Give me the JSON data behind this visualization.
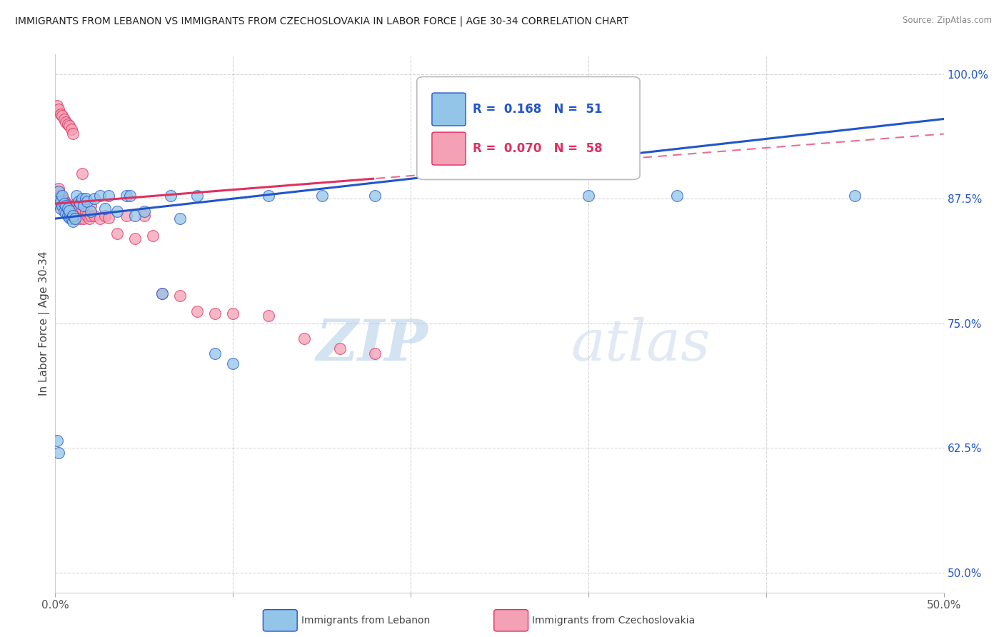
{
  "title": "IMMIGRANTS FROM LEBANON VS IMMIGRANTS FROM CZECHOSLOVAKIA IN LABOR FORCE | AGE 30-34 CORRELATION CHART",
  "source": "Source: ZipAtlas.com",
  "ylabel": "In Labor Force | Age 30-34",
  "xlim": [
    0.0,
    0.5
  ],
  "ylim": [
    0.48,
    1.02
  ],
  "y_ticks_right": [
    0.5,
    0.625,
    0.75,
    0.875,
    1.0
  ],
  "y_tick_labels_right": [
    "50.0%",
    "62.5%",
    "75.0%",
    "87.5%",
    "100.0%"
  ],
  "lebanon_R": 0.168,
  "lebanon_N": 51,
  "czech_R": 0.07,
  "czech_N": 58,
  "lebanon_color": "#92C5E8",
  "czech_color": "#F4A0B5",
  "lebanon_line_color": "#2255CC",
  "czech_line_color": "#E03060",
  "background_color": "#FFFFFF",
  "grid_color": "#CCCCCC",
  "watermark_zip": "ZIP",
  "watermark_atlas": "atlas",
  "lebanon_x": [
    0.001,
    0.001,
    0.002,
    0.002,
    0.003,
    0.003,
    0.004,
    0.004,
    0.005,
    0.005,
    0.006,
    0.006,
    0.007,
    0.007,
    0.008,
    0.008,
    0.009,
    0.01,
    0.01,
    0.011,
    0.012,
    0.013,
    0.014,
    0.015,
    0.016,
    0.017,
    0.018,
    0.02,
    0.022,
    0.025,
    0.028,
    0.03,
    0.035,
    0.04,
    0.042,
    0.045,
    0.05,
    0.06,
    0.065,
    0.07,
    0.08,
    0.09,
    0.1,
    0.12,
    0.15,
    0.18,
    0.3,
    0.35,
    0.45,
    0.001,
    0.002
  ],
  "lebanon_y": [
    0.87,
    0.875,
    0.875,
    0.882,
    0.865,
    0.872,
    0.868,
    0.878,
    0.862,
    0.87,
    0.86,
    0.868,
    0.858,
    0.865,
    0.856,
    0.863,
    0.855,
    0.852,
    0.858,
    0.855,
    0.878,
    0.872,
    0.87,
    0.875,
    0.868,
    0.875,
    0.872,
    0.862,
    0.875,
    0.878,
    0.865,
    0.878,
    0.862,
    0.878,
    0.878,
    0.858,
    0.862,
    0.78,
    0.878,
    0.855,
    0.878,
    0.72,
    0.71,
    0.878,
    0.878,
    0.878,
    0.878,
    0.878,
    0.878,
    0.632,
    0.62
  ],
  "czech_x": [
    0.001,
    0.001,
    0.002,
    0.002,
    0.003,
    0.003,
    0.004,
    0.004,
    0.005,
    0.005,
    0.006,
    0.006,
    0.007,
    0.007,
    0.008,
    0.009,
    0.01,
    0.01,
    0.011,
    0.012,
    0.013,
    0.014,
    0.015,
    0.016,
    0.017,
    0.018,
    0.019,
    0.02,
    0.022,
    0.025,
    0.028,
    0.03,
    0.035,
    0.04,
    0.045,
    0.05,
    0.055,
    0.06,
    0.07,
    0.08,
    0.09,
    0.1,
    0.12,
    0.14,
    0.16,
    0.18,
    0.001,
    0.002,
    0.003,
    0.004,
    0.005,
    0.006,
    0.007,
    0.008,
    0.009,
    0.01,
    0.015,
    0.02
  ],
  "czech_y": [
    0.875,
    0.882,
    0.878,
    0.885,
    0.872,
    0.878,
    0.87,
    0.876,
    0.868,
    0.873,
    0.866,
    0.871,
    0.864,
    0.869,
    0.862,
    0.867,
    0.86,
    0.865,
    0.858,
    0.87,
    0.865,
    0.855,
    0.865,
    0.855,
    0.862,
    0.858,
    0.855,
    0.858,
    0.858,
    0.855,
    0.858,
    0.856,
    0.84,
    0.858,
    0.835,
    0.858,
    0.838,
    0.78,
    0.778,
    0.762,
    0.76,
    0.76,
    0.758,
    0.735,
    0.725,
    0.72,
    0.968,
    0.965,
    0.96,
    0.958,
    0.955,
    0.952,
    0.95,
    0.948,
    0.945,
    0.94,
    0.9,
    0.868
  ]
}
